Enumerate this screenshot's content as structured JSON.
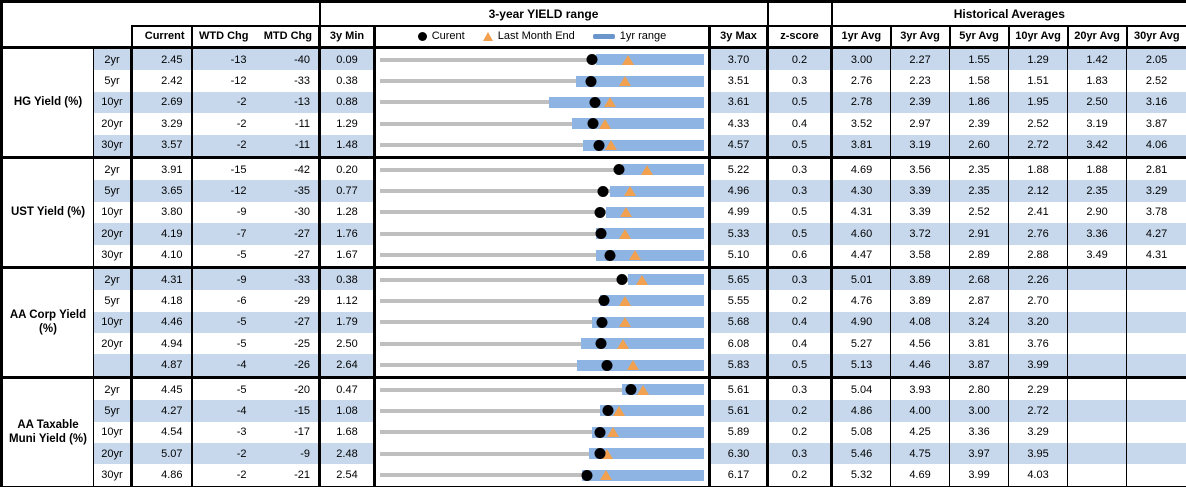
{
  "header": {
    "range_title": "3-year YIELD range",
    "historical_title": "Historical Averages",
    "columns": {
      "current": "Current",
      "wtd_chg": "WTD Chg",
      "mtd_chg": "MTD Chg",
      "min_3y": "3y Min",
      "max_3y": "3y Max",
      "z_score": "z-score",
      "avgs": [
        "1yr Avg",
        "3yr Avg",
        "5yr Avg",
        "10yr Avg",
        "20yr Avg",
        "30yr Avg"
      ]
    },
    "legend": {
      "current_label": "Curent",
      "last_month_label": "Last Month End",
      "range_label": "1yr range"
    }
  },
  "colors": {
    "row_stripe": "#C7D8EC",
    "range_bar_blue": "#8EB4E3",
    "track_gray": "#BFBFBF",
    "marker_dot": "#000000",
    "marker_triangle": "#F1A14F",
    "legend_dash": "#6A96CC",
    "border": "#000000"
  },
  "chart_data": {
    "type": "table",
    "title": "3-year YIELD range",
    "row_chart_note": "Each row: gray track spans 3y Min to 3y Max; blue bar = 1yr range (low estimated from pixels, high = 3y Max); black dot = Current; orange triangle = Last Month End.",
    "sections": [
      {
        "label": "HG Yield (%)",
        "rows": [
          {
            "tenor": "2yr",
            "current": "2.45",
            "wtd_chg": "-13",
            "mtd_chg": "-40",
            "min_3y": "0.09",
            "max_3y": "3.70",
            "z_score": "0.2",
            "last_month_end": 2.85,
            "range_1y_low": 2.5,
            "range_1y_high": 3.7,
            "avgs": [
              "3.00",
              "2.27",
              "1.55",
              "1.29",
              "1.42",
              "2.05"
            ]
          },
          {
            "tenor": "5yr",
            "current": "2.42",
            "wtd_chg": "-12",
            "mtd_chg": "-33",
            "min_3y": "0.38",
            "max_3y": "3.51",
            "z_score": "0.3",
            "last_month_end": 2.75,
            "range_1y_low": 2.27,
            "range_1y_high": 3.51,
            "avgs": [
              "2.76",
              "2.23",
              "1.58",
              "1.51",
              "1.83",
              "2.52"
            ]
          },
          {
            "tenor": "10yr",
            "current": "2.69",
            "wtd_chg": "-2",
            "mtd_chg": "-13",
            "min_3y": "0.88",
            "max_3y": "3.61",
            "z_score": "0.5",
            "last_month_end": 2.82,
            "range_1y_low": 2.3,
            "range_1y_high": 3.61,
            "avgs": [
              "2.78",
              "2.39",
              "1.86",
              "1.95",
              "2.50",
              "3.16"
            ]
          },
          {
            "tenor": "20yr",
            "current": "3.29",
            "wtd_chg": "-2",
            "mtd_chg": "-11",
            "min_3y": "1.29",
            "max_3y": "4.33",
            "z_score": "0.4",
            "last_month_end": 3.4,
            "range_1y_low": 3.09,
            "range_1y_high": 4.33,
            "avgs": [
              "3.52",
              "2.97",
              "2.39",
              "2.52",
              "3.19",
              "3.87"
            ]
          },
          {
            "tenor": "30yr",
            "current": "3.57",
            "wtd_chg": "-2",
            "mtd_chg": "-11",
            "min_3y": "1.48",
            "max_3y": "4.57",
            "z_score": "0.5",
            "last_month_end": 3.68,
            "range_1y_low": 3.42,
            "range_1y_high": 4.57,
            "avgs": [
              "3.81",
              "3.19",
              "2.60",
              "2.72",
              "3.42",
              "4.06"
            ]
          }
        ]
      },
      {
        "label": "UST Yield (%)",
        "rows": [
          {
            "tenor": "2yr",
            "current": "3.91",
            "wtd_chg": "-15",
            "mtd_chg": "-42",
            "min_3y": "0.20",
            "max_3y": "5.22",
            "z_score": "0.3",
            "last_month_end": 4.33,
            "range_1y_low": 3.95,
            "range_1y_high": 5.22,
            "avgs": [
              "4.69",
              "3.56",
              "2.35",
              "1.88",
              "1.88",
              "2.81"
            ]
          },
          {
            "tenor": "5yr",
            "current": "3.65",
            "wtd_chg": "-12",
            "mtd_chg": "-35",
            "min_3y": "0.77",
            "max_3y": "4.96",
            "z_score": "0.3",
            "last_month_end": 4.0,
            "range_1y_low": 3.75,
            "range_1y_high": 4.96,
            "avgs": [
              "4.30",
              "3.39",
              "2.35",
              "2.12",
              "2.35",
              "3.29"
            ]
          },
          {
            "tenor": "10yr",
            "current": "3.80",
            "wtd_chg": "-9",
            "mtd_chg": "-30",
            "min_3y": "1.28",
            "max_3y": "4.99",
            "z_score": "0.5",
            "last_month_end": 4.1,
            "range_1y_low": 3.87,
            "range_1y_high": 4.99,
            "avgs": [
              "4.31",
              "3.39",
              "2.52",
              "2.41",
              "2.90",
              "3.78"
            ]
          },
          {
            "tenor": "20yr",
            "current": "4.19",
            "wtd_chg": "-7",
            "mtd_chg": "-27",
            "min_3y": "1.76",
            "max_3y": "5.33",
            "z_score": "0.5",
            "last_month_end": 4.46,
            "range_1y_low": 4.14,
            "range_1y_high": 5.33,
            "avgs": [
              "4.60",
              "3.72",
              "2.91",
              "2.76",
              "3.36",
              "4.27"
            ]
          },
          {
            "tenor": "30yr",
            "current": "4.10",
            "wtd_chg": "-5",
            "mtd_chg": "-27",
            "min_3y": "1.67",
            "max_3y": "5.10",
            "z_score": "0.6",
            "last_month_end": 4.37,
            "range_1y_low": 3.96,
            "range_1y_high": 5.1,
            "avgs": [
              "4.47",
              "3.58",
              "2.89",
              "2.88",
              "3.49",
              "4.31"
            ]
          }
        ]
      },
      {
        "label": "AA Corp Yield (%)",
        "rows": [
          {
            "tenor": "2yr",
            "current": "4.31",
            "wtd_chg": "-9",
            "mtd_chg": "-33",
            "min_3y": "0.38",
            "max_3y": "5.65",
            "z_score": "0.3",
            "last_month_end": 4.64,
            "range_1y_low": 4.42,
            "range_1y_high": 5.65,
            "avgs": [
              "5.01",
              "3.89",
              "2.68",
              "2.26",
              "",
              ""
            ]
          },
          {
            "tenor": "5yr",
            "current": "4.18",
            "wtd_chg": "-6",
            "mtd_chg": "-29",
            "min_3y": "1.12",
            "max_3y": "5.55",
            "z_score": "0.2",
            "last_month_end": 4.47,
            "range_1y_low": 4.13,
            "range_1y_high": 5.55,
            "avgs": [
              "4.76",
              "3.89",
              "2.87",
              "2.70",
              "",
              ""
            ]
          },
          {
            "tenor": "10yr",
            "current": "4.46",
            "wtd_chg": "-5",
            "mtd_chg": "-27",
            "min_3y": "1.79",
            "max_3y": "5.68",
            "z_score": "0.4",
            "last_month_end": 4.73,
            "range_1y_low": 4.33,
            "range_1y_high": 5.68,
            "avgs": [
              "4.90",
              "4.08",
              "3.24",
              "3.20",
              "",
              ""
            ]
          },
          {
            "tenor": "20yr",
            "current": "4.94",
            "wtd_chg": "-5",
            "mtd_chg": "-25",
            "min_3y": "2.50",
            "max_3y": "6.08",
            "z_score": "0.4",
            "last_month_end": 5.19,
            "range_1y_low": 4.72,
            "range_1y_high": 6.08,
            "avgs": [
              "5.27",
              "4.56",
              "3.81",
              "3.76",
              "",
              ""
            ]
          },
          {
            "tenor": "",
            "current": "4.87",
            "wtd_chg": "-4",
            "mtd_chg": "-26",
            "min_3y": "2.64",
            "max_3y": "5.83",
            "z_score": "0.5",
            "last_month_end": 5.13,
            "range_1y_low": 4.58,
            "range_1y_high": 5.83,
            "avgs": [
              "5.13",
              "4.46",
              "3.87",
              "3.99",
              "",
              ""
            ]
          }
        ]
      },
      {
        "label": "AA Taxable Muni Yield (%)",
        "rows": [
          {
            "tenor": "2yr",
            "current": "4.45",
            "wtd_chg": "-5",
            "mtd_chg": "-20",
            "min_3y": "0.47",
            "max_3y": "5.61",
            "z_score": "0.3",
            "last_month_end": 4.65,
            "range_1y_low": 4.31,
            "range_1y_high": 5.61,
            "avgs": [
              "5.04",
              "3.93",
              "2.80",
              "2.29",
              "",
              ""
            ]
          },
          {
            "tenor": "5yr",
            "current": "4.27",
            "wtd_chg": "-4",
            "mtd_chg": "-15",
            "min_3y": "1.08",
            "max_3y": "5.61",
            "z_score": "0.2",
            "last_month_end": 4.42,
            "range_1y_low": 4.15,
            "range_1y_high": 5.61,
            "avgs": [
              "4.86",
              "4.00",
              "3.00",
              "2.72",
              "",
              ""
            ]
          },
          {
            "tenor": "10yr",
            "current": "4.54",
            "wtd_chg": "-3",
            "mtd_chg": "-17",
            "min_3y": "1.68",
            "max_3y": "5.89",
            "z_score": "0.2",
            "last_month_end": 4.71,
            "range_1y_low": 4.44,
            "range_1y_high": 5.89,
            "avgs": [
              "5.08",
              "4.25",
              "3.36",
              "3.29",
              "",
              ""
            ]
          },
          {
            "tenor": "20yr",
            "current": "5.07",
            "wtd_chg": "-2",
            "mtd_chg": "-9",
            "min_3y": "2.48",
            "max_3y": "6.30",
            "z_score": "0.3",
            "last_month_end": 5.16,
            "range_1y_low": 4.94,
            "range_1y_high": 6.3,
            "avgs": [
              "5.46",
              "4.75",
              "3.97",
              "3.95",
              "",
              ""
            ]
          },
          {
            "tenor": "30yr",
            "current": "4.86",
            "wtd_chg": "-2",
            "mtd_chg": "-21",
            "min_3y": "2.54",
            "max_3y": "6.17",
            "z_score": "0.2",
            "last_month_end": 5.07,
            "range_1y_low": 4.8,
            "range_1y_high": 6.17,
            "avgs": [
              "5.32",
              "4.69",
              "3.99",
              "4.03",
              "",
              ""
            ]
          }
        ]
      }
    ]
  }
}
